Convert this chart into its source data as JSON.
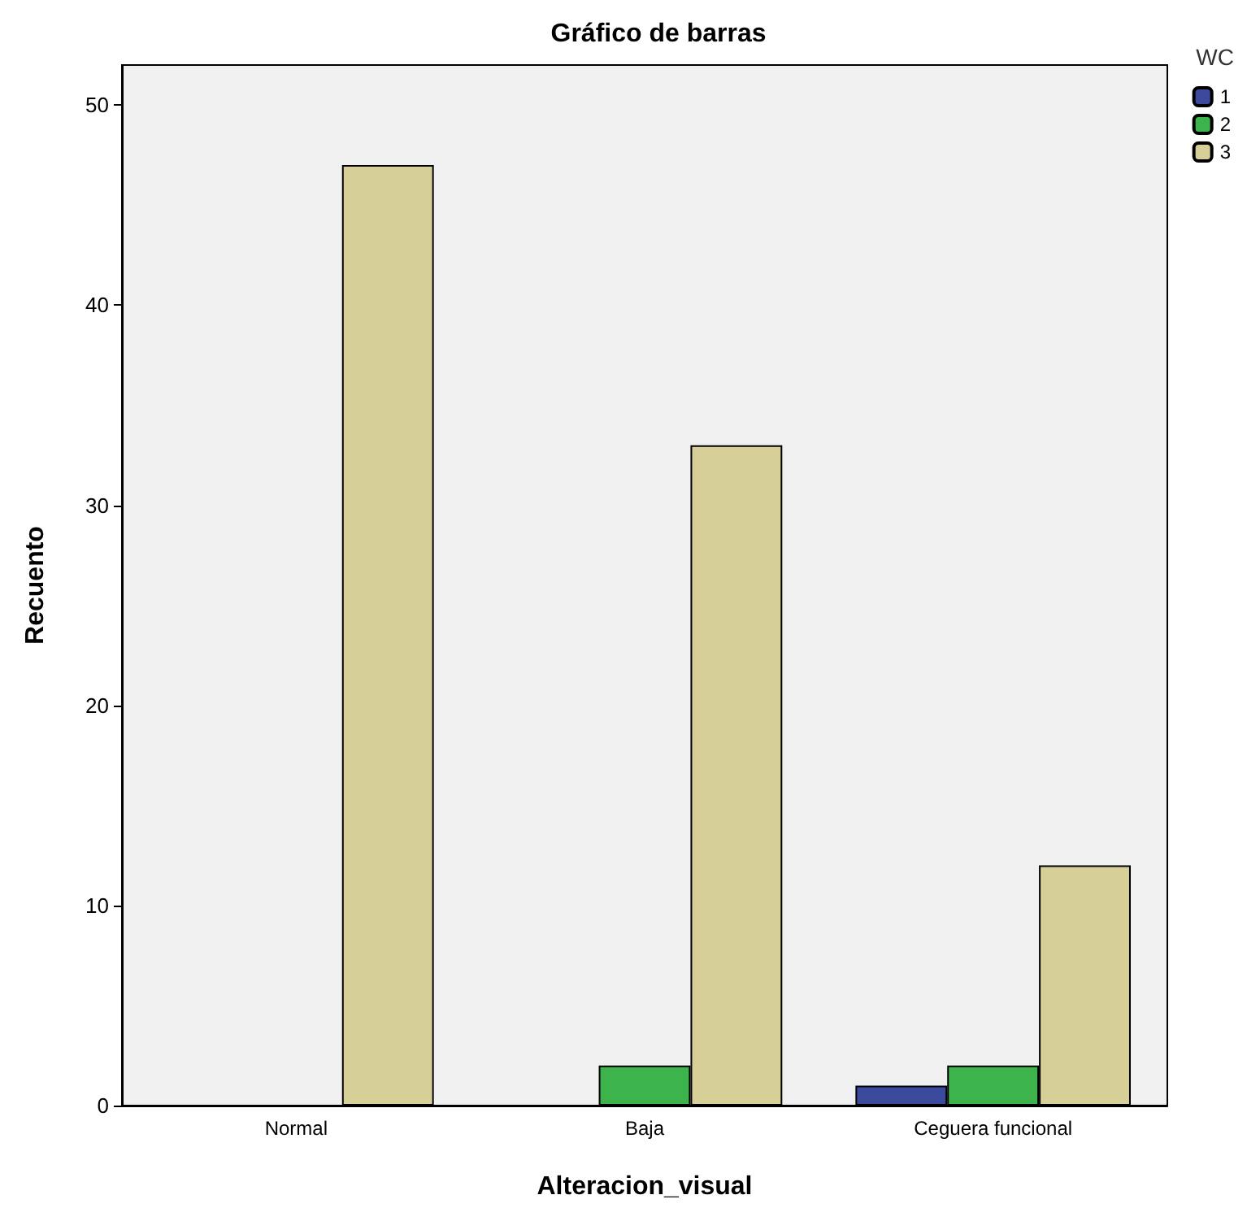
{
  "chart_data": {
    "type": "bar",
    "title": "Gráfico de barras",
    "xlabel": "Alteracion_visual",
    "ylabel": "Recuento",
    "legend_title": "WC",
    "categories": [
      "Normal",
      "Baja",
      "Ceguera funcional"
    ],
    "series": [
      {
        "name": "1",
        "color": "#3b4a9c",
        "values": [
          null,
          null,
          1
        ]
      },
      {
        "name": "2",
        "color": "#3cb44b",
        "values": [
          null,
          2,
          2
        ]
      },
      {
        "name": "3",
        "color": "#d6cf98",
        "values": [
          47,
          33,
          12
        ]
      }
    ],
    "ylim": [
      0,
      52
    ],
    "yticks": [
      0,
      10,
      20,
      30,
      40,
      50
    ],
    "grid": false,
    "legend": "top right"
  }
}
